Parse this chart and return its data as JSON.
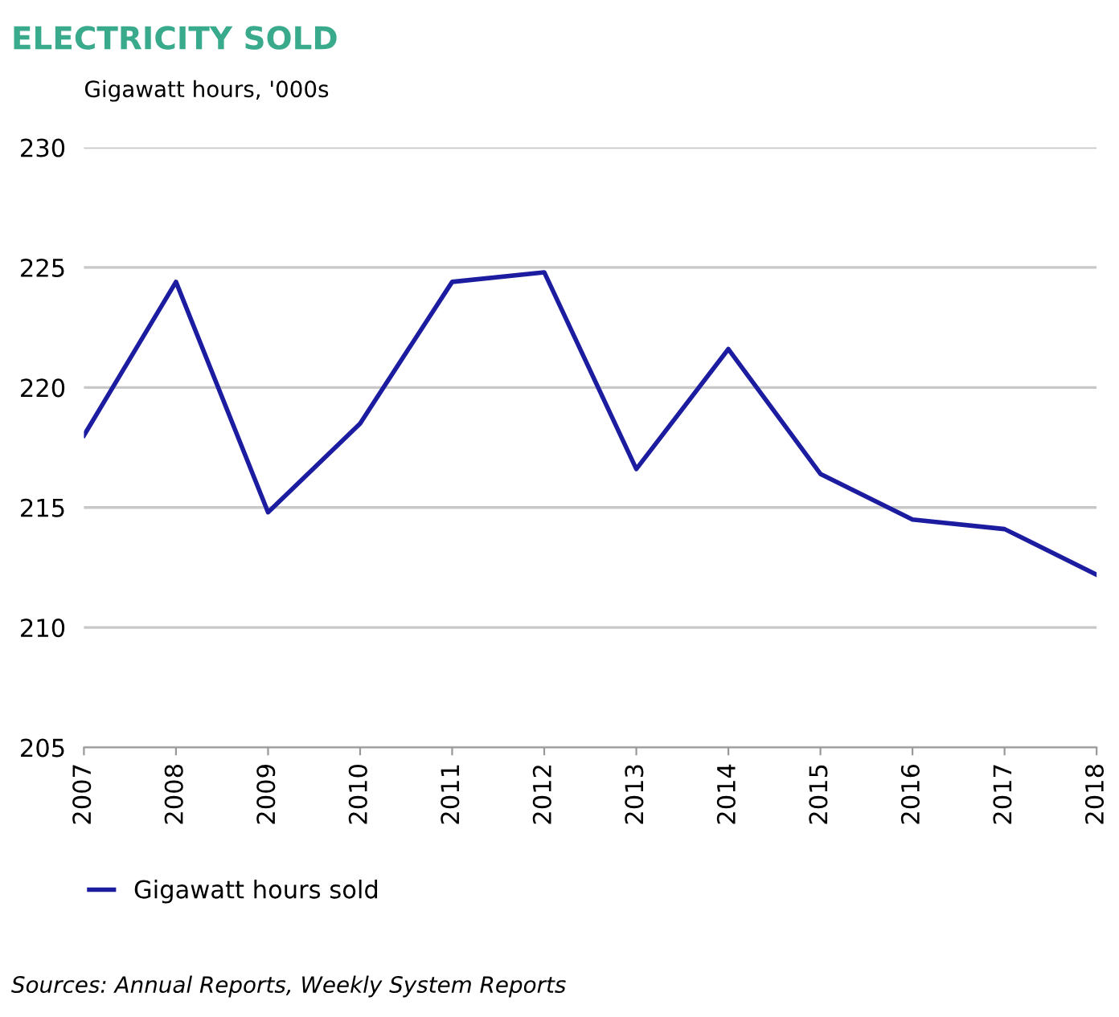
{
  "chart_data": {
    "type": "line",
    "title": "ELECTRICITY SOLD",
    "ylabel": "Gigawatt hours, '000s",
    "categories": [
      "2007",
      "2008",
      "2009",
      "2010",
      "2011",
      "2012",
      "2013",
      "2014",
      "2015",
      "2016",
      "2017",
      "2018"
    ],
    "series": [
      {
        "name": "Gigawatt hours sold",
        "color": "#1c1ca0",
        "values": [
          218.0,
          224.4,
          214.8,
          218.5,
          224.4,
          224.8,
          216.6,
          221.6,
          216.4,
          214.5,
          214.1,
          212.2
        ]
      }
    ],
    "ylim": [
      205,
      230
    ],
    "yticks": [
      205,
      210,
      215,
      220,
      225,
      230
    ],
    "grid": "y",
    "legend": "bottom left",
    "marker": "none",
    "line_style": "solid",
    "annotations": [
      "Sources: Annual Reports, Weekly System Reports"
    ]
  }
}
